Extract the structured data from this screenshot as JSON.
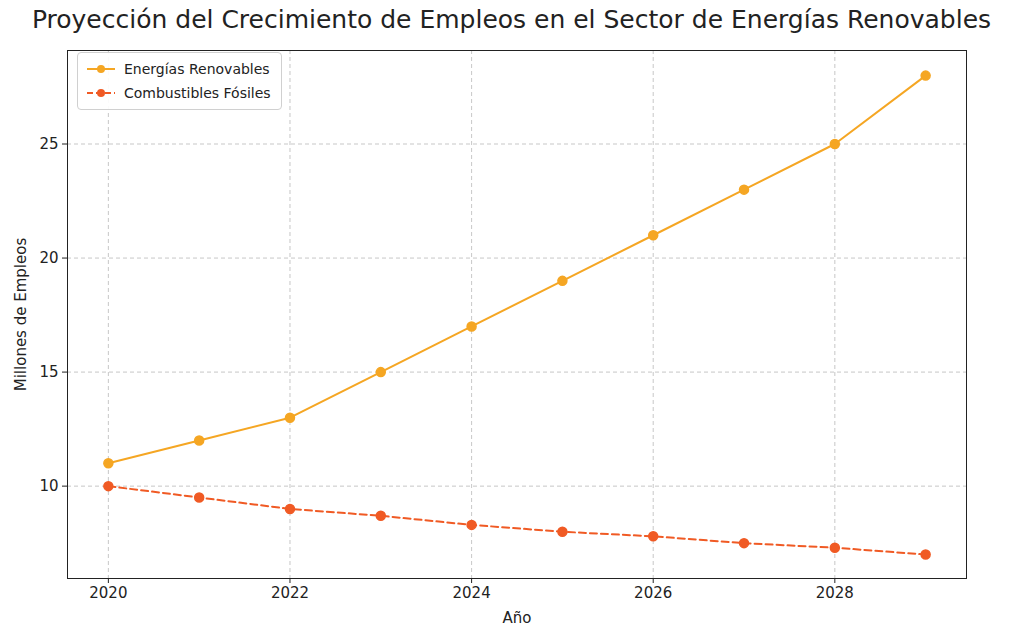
{
  "chart_data": {
    "type": "line",
    "title": "Proyección del Crecimiento de Empleos en el Sector de Energías Renovables",
    "x_label": "Año",
    "y_label": "Millones de Empleos",
    "x": [
      2020,
      2021,
      2022,
      2023,
      2024,
      2025,
      2026,
      2027,
      2028,
      2029
    ],
    "series": [
      {
        "name": "Energías Renovables",
        "color": "#f5a623",
        "marker": "circle",
        "line_style": "solid",
        "values": [
          11,
          12,
          13,
          15,
          17,
          19,
          21,
          23,
          25,
          28
        ]
      },
      {
        "name": "Combustibles Fósiles",
        "color": "#f05a24",
        "marker": "circle",
        "line_style": "dashed",
        "values": [
          10,
          9.5,
          9,
          8.7,
          8.3,
          8,
          7.8,
          7.5,
          7.3,
          7
        ]
      }
    ],
    "xlim": [
      2019.55,
      2029.45
    ],
    "xticks": [
      2020,
      2022,
      2024,
      2026,
      2028
    ],
    "ylim": [
      5.95,
      29.1
    ],
    "yticks": [
      10,
      15,
      20,
      25
    ],
    "grid": true,
    "legend": "upper left"
  }
}
